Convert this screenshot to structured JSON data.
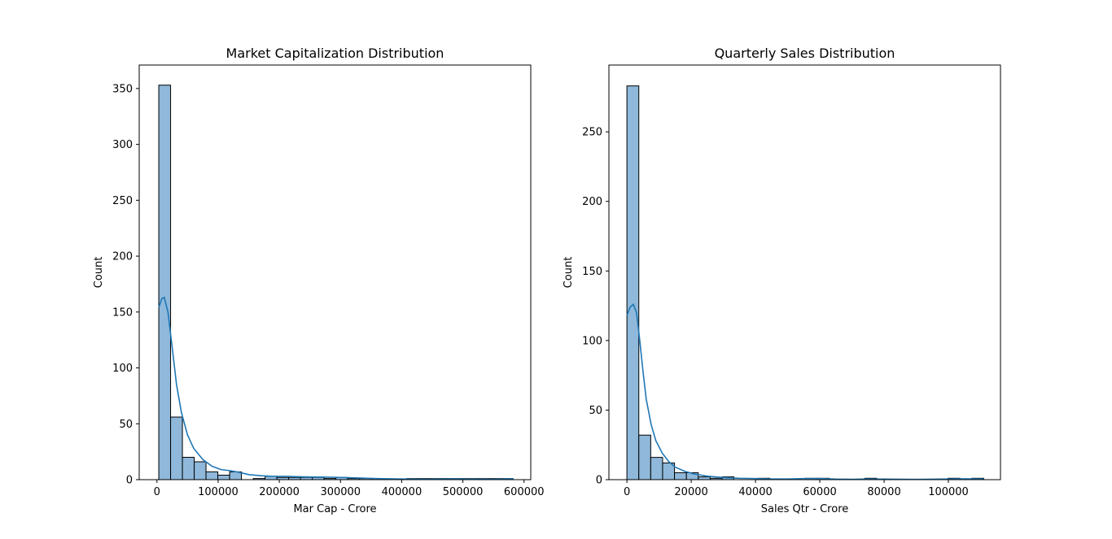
{
  "chart_data": [
    {
      "type": "histogram",
      "title": "Market Capitalization Distribution",
      "xlabel": "Mar Cap - Crore",
      "ylabel": "Count",
      "xlim": [
        -29000,
        611000
      ],
      "ylim": [
        0,
        371
      ],
      "xticks": [
        0,
        100000,
        200000,
        300000,
        400000,
        500000,
        600000
      ],
      "xtick_labels": [
        "0",
        "100000",
        "200000",
        "300000",
        "400000",
        "500000",
        "600000"
      ],
      "yticks": [
        0,
        50,
        100,
        150,
        200,
        250,
        300,
        350
      ],
      "ytick_labels": [
        "0",
        "50",
        "100",
        "150",
        "200",
        "250",
        "300",
        "350"
      ],
      "bin_start": 3000,
      "bin_width": 19300,
      "counts": [
        353,
        56,
        20,
        16,
        7,
        4,
        7,
        0,
        1,
        3,
        2,
        2,
        2,
        2,
        1,
        2,
        1,
        1,
        1,
        0,
        0,
        1,
        1,
        1,
        1,
        1,
        1,
        1,
        1,
        1
      ],
      "kde": [
        [
          3000,
          154
        ],
        [
          8000,
          162
        ],
        [
          12000,
          163
        ],
        [
          18000,
          150
        ],
        [
          25000,
          118
        ],
        [
          32000,
          85
        ],
        [
          40000,
          60
        ],
        [
          50000,
          40
        ],
        [
          60000,
          28
        ],
        [
          75000,
          18
        ],
        [
          90000,
          12
        ],
        [
          105000,
          9
        ],
        [
          120000,
          8
        ],
        [
          135000,
          6.5
        ],
        [
          150000,
          4.5
        ],
        [
          170000,
          3.5
        ],
        [
          190000,
          3
        ],
        [
          210000,
          3
        ],
        [
          240000,
          2.5
        ],
        [
          270000,
          2.3
        ],
        [
          300000,
          2
        ],
        [
          330000,
          1.5
        ],
        [
          360000,
          1
        ],
        [
          400000,
          0.6
        ],
        [
          440000,
          0.4
        ],
        [
          480000,
          0.6
        ],
        [
          510000,
          0.5
        ],
        [
          550000,
          0.4
        ],
        [
          583000,
          0.8
        ]
      ],
      "color": "#1f77b4",
      "bar_fill": "#8fb8da",
      "grid": false,
      "legend": "none"
    },
    {
      "type": "histogram",
      "title": "Quarterly Sales Distribution",
      "xlabel": "Sales Qtr - Crore",
      "ylabel": "Count",
      "xlim": [
        -5600,
        116200
      ],
      "ylim": [
        0,
        298
      ],
      "xticks": [
        0,
        20000,
        40000,
        60000,
        80000,
        100000
      ],
      "xtick_labels": [
        "0",
        "20000",
        "40000",
        "60000",
        "80000",
        "100000"
      ],
      "yticks": [
        0,
        50,
        100,
        150,
        200,
        250
      ],
      "ytick_labels": [
        "0",
        "50",
        "100",
        "150",
        "200",
        "250"
      ],
      "bin_start": 0,
      "bin_width": 3700,
      "counts": [
        283,
        32,
        16,
        12,
        5,
        5,
        2,
        1,
        2,
        0,
        0,
        1,
        0,
        0,
        0,
        1,
        1,
        0,
        0,
        0,
        1,
        0,
        0,
        0,
        0,
        0,
        0,
        1,
        0,
        1
      ],
      "kde": [
        [
          0,
          118
        ],
        [
          1000,
          124
        ],
        [
          2000,
          126
        ],
        [
          3000,
          120
        ],
        [
          4000,
          100
        ],
        [
          5000,
          78
        ],
        [
          6000,
          58
        ],
        [
          7500,
          40
        ],
        [
          9000,
          28
        ],
        [
          11000,
          19
        ],
        [
          13000,
          13
        ],
        [
          15000,
          9
        ],
        [
          18000,
          6
        ],
        [
          21000,
          4
        ],
        [
          25000,
          2.5
        ],
        [
          30000,
          1.5
        ],
        [
          35000,
          1
        ],
        [
          40000,
          0.8
        ],
        [
          45000,
          0.5
        ],
        [
          50000,
          0.5
        ],
        [
          55000,
          0.8
        ],
        [
          60000,
          0.8
        ],
        [
          65000,
          0.4
        ],
        [
          70000,
          0.3
        ],
        [
          75000,
          0.5
        ],
        [
          80000,
          0.4
        ],
        [
          90000,
          0.2
        ],
        [
          100000,
          0.5
        ],
        [
          105000,
          0.6
        ],
        [
          111000,
          0.5
        ]
      ],
      "color": "#1f77b4",
      "bar_fill": "#8fb8da",
      "grid": false,
      "legend": "none"
    }
  ]
}
